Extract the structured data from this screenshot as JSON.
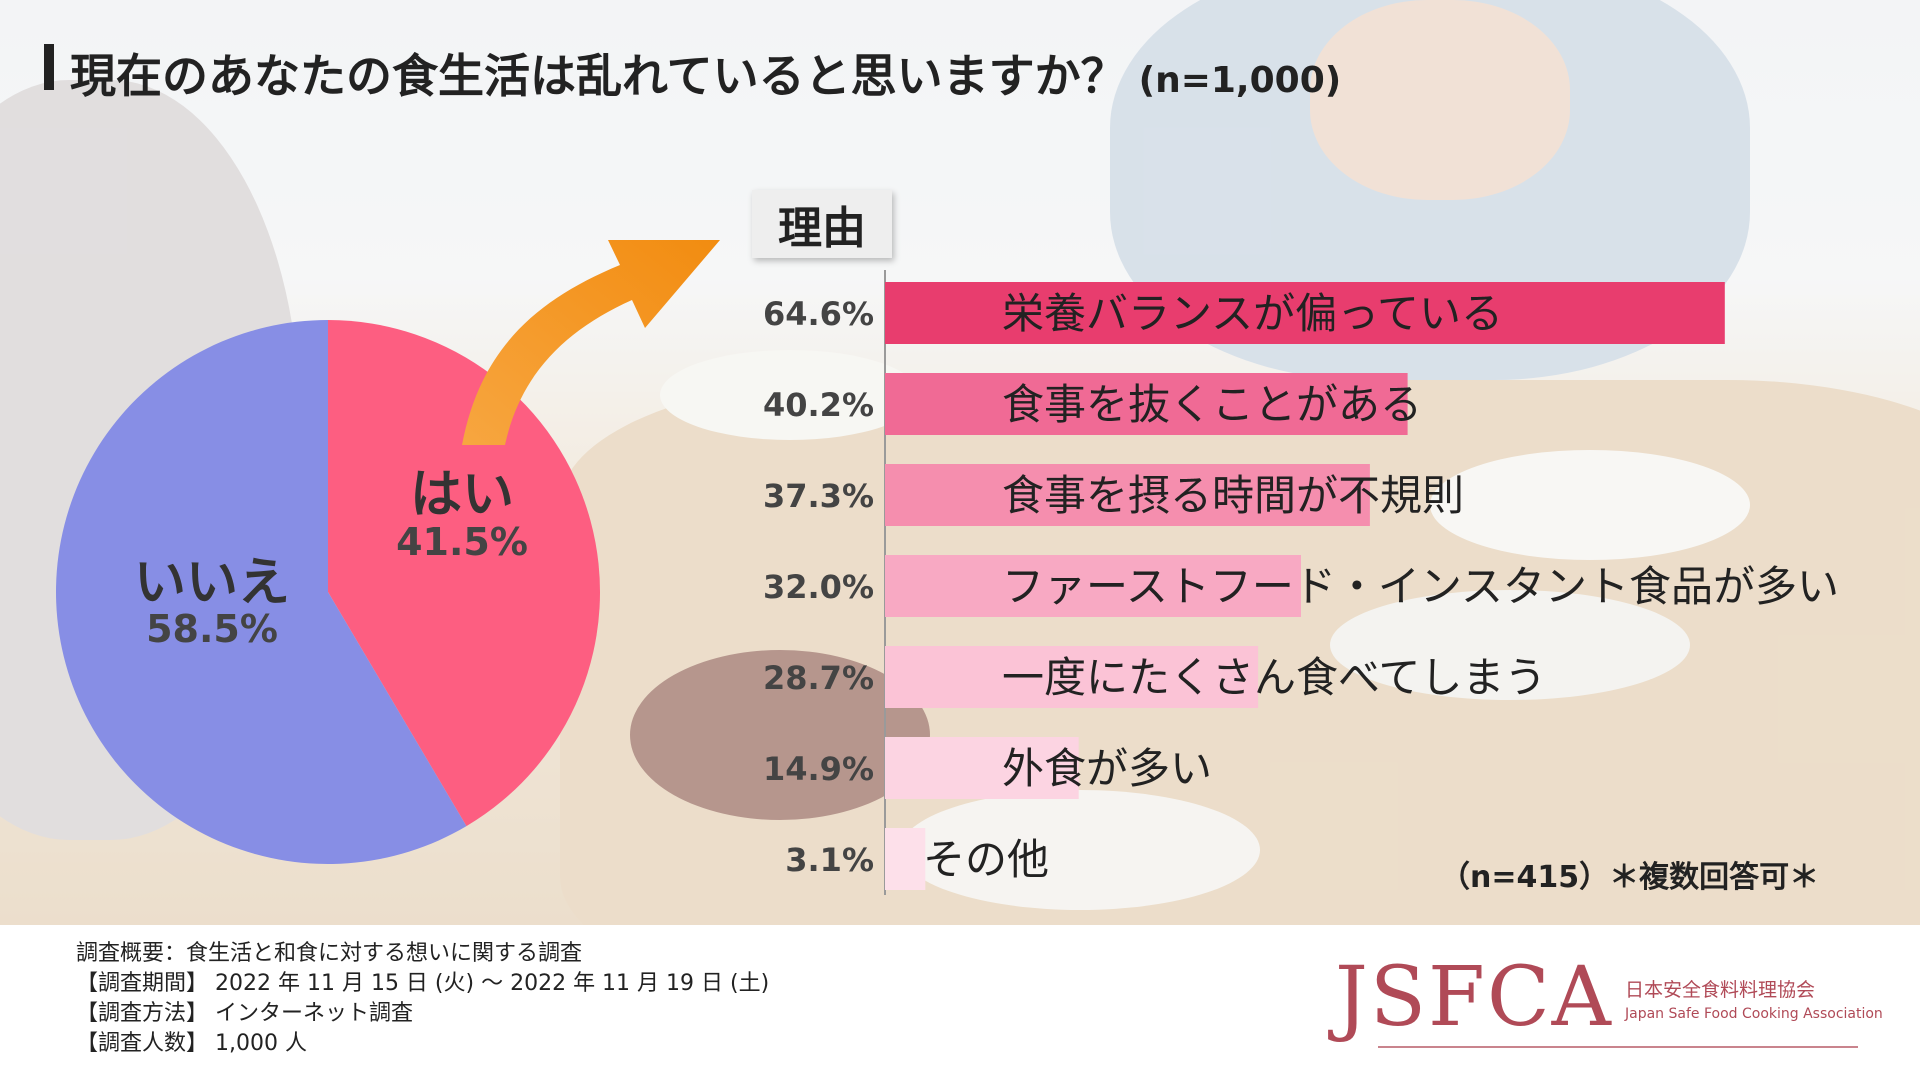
{
  "title": "現在のあなたの食生活は乱れていると思いますか？",
  "title_n": "(n=1,000)",
  "reason_label": "理由",
  "chart_data": [
    {
      "type": "pie",
      "slices": [
        {
          "label": "はい",
          "value": 41.5,
          "value_label": "41.5%",
          "color": "#fd5e81"
        },
        {
          "label": "いいえ",
          "value": 58.5,
          "value_label": "58.5%",
          "color": "#878ee5"
        }
      ]
    },
    {
      "type": "bar",
      "orientation": "horizontal",
      "categories": [
        "栄養バランスが偏っている",
        "食事を抜くことがある",
        "食事を摂る時間が不規則",
        "ファーストフード・インスタント食品が多い",
        "一度にたくさん食べてしまう",
        "外食が多い",
        "その他"
      ],
      "values": [
        64.6,
        40.2,
        37.3,
        32.0,
        28.7,
        14.9,
        3.1
      ],
      "value_labels": [
        "64.6%",
        "40.2%",
        "37.3%",
        "32.0%",
        "28.7%",
        "14.9%",
        "3.1%"
      ],
      "colors": [
        "#e83d6e",
        "#f06a95",
        "#f58eae",
        "#f8a9c3",
        "#fbc3d6",
        "#fcd4e2",
        "#fde0ea"
      ],
      "xlim": [
        0,
        100
      ]
    }
  ],
  "count_note": "（n=415）＊複数回答可＊",
  "survey": {
    "overview": "調査概要：食生活と和食に対する想いに関する調査",
    "period": "【調査期間】 2022 年 11 月 15 日 (火) ～ 2022 年 11 月 19 日 (土)",
    "method": "【調査方法】 インターネット調査",
    "people": "【調査人数】 1,000 人"
  },
  "logo": {
    "main": "JSFCA",
    "jp": "日本安全食料料理協会",
    "en": "Japan Safe Food Cooking Association",
    "color": "#b04a57"
  }
}
